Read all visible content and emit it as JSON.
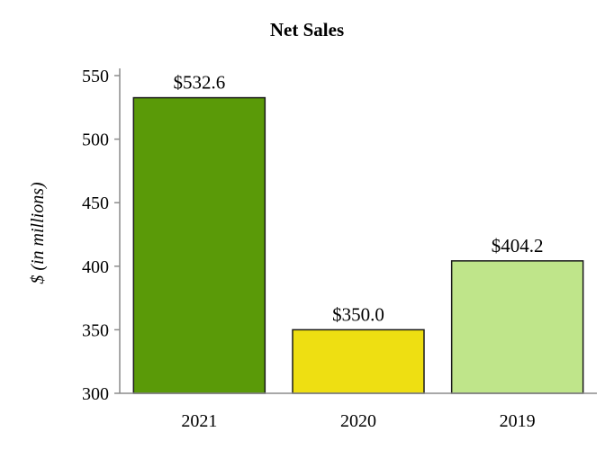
{
  "chart_data": {
    "type": "bar",
    "title": "Net Sales",
    "xlabel": "",
    "ylabel": "$ (in millions)",
    "categories": [
      "2021",
      "2020",
      "2019"
    ],
    "values": [
      532.6,
      350.0,
      404.2
    ],
    "data_labels": [
      "$532.6",
      "$350.0",
      "$404.2"
    ],
    "colors": [
      "#5a9a08",
      "#eedf12",
      "#bfe58a"
    ],
    "bar_outline_color": "#1a1a1a",
    "axis_color": "#8c8c8c",
    "ylim": [
      300,
      550
    ],
    "yticks": [
      300,
      350,
      400,
      450,
      500,
      550
    ],
    "grid": false,
    "legend": "none"
  }
}
